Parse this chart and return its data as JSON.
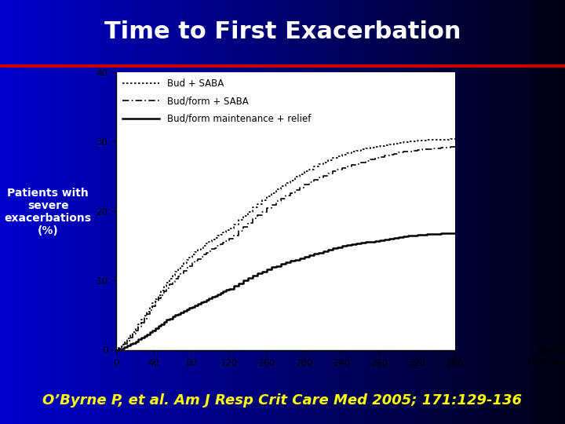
{
  "title": "Time to First Exacerbation",
  "title_color": "white",
  "title_fontsize": 22,
  "bg_color_left": "#0000cc",
  "bg_color_right": "#000020",
  "plot_bg_color": "white",
  "ylabel": "Patients with\nsevere\nexacerbations\n(%)",
  "ylabel_color": "white",
  "ylabel_fontsize": 10,
  "xlabel": "Days since\nrandomization",
  "xlabel_color": "black",
  "xlabel_fontsize": 9,
  "citation": "O’Byrne P, et al. Am J Resp Crit Care Med 2005; 171:129-136",
  "citation_color": "#ffff00",
  "citation_fontsize": 13,
  "red_line_color": "#cc0000",
  "xlim": [
    0,
    360
  ],
  "ylim": [
    0,
    40
  ],
  "xticks": [
    0,
    40,
    80,
    120,
    160,
    200,
    240,
    280,
    320,
    360
  ],
  "yticks": [
    0,
    10,
    20,
    30,
    40
  ],
  "legend_labels": [
    "Bud + SABA",
    "Bud/form + SABA",
    "Bud/form maintenance + relief"
  ],
  "line_color": "black",
  "curve1_x": [
    0,
    3,
    6,
    9,
    12,
    15,
    18,
    21,
    24,
    27,
    30,
    33,
    36,
    39,
    42,
    45,
    48,
    51,
    54,
    57,
    60,
    63,
    66,
    69,
    72,
    75,
    78,
    81,
    84,
    87,
    90,
    93,
    96,
    99,
    102,
    105,
    108,
    111,
    114,
    117,
    120,
    125,
    130,
    135,
    140,
    145,
    150,
    155,
    160,
    165,
    170,
    175,
    180,
    185,
    190,
    195,
    200,
    205,
    210,
    215,
    220,
    225,
    230,
    235,
    240,
    245,
    250,
    255,
    260,
    265,
    270,
    275,
    280,
    285,
    290,
    295,
    300,
    305,
    310,
    315,
    320,
    325,
    330,
    335,
    340,
    345,
    350,
    355,
    360
  ],
  "curve1_y": [
    0,
    0.3,
    0.7,
    1.1,
    1.6,
    2.1,
    2.6,
    3.1,
    3.7,
    4.3,
    4.9,
    5.5,
    6.1,
    6.7,
    7.3,
    7.9,
    8.5,
    9.1,
    9.7,
    10.2,
    10.7,
    11.2,
    11.7,
    12.1,
    12.5,
    12.9,
    13.3,
    13.7,
    14.1,
    14.4,
    14.7,
    15.0,
    15.3,
    15.6,
    15.9,
    16.1,
    16.4,
    16.6,
    16.9,
    17.2,
    17.5,
    18.0,
    18.7,
    19.3,
    19.9,
    20.5,
    21.0,
    21.6,
    22.1,
    22.6,
    23.1,
    23.6,
    24.0,
    24.4,
    24.9,
    25.3,
    25.7,
    26.0,
    26.4,
    26.7,
    27.0,
    27.3,
    27.6,
    27.9,
    28.1,
    28.3,
    28.5,
    28.7,
    28.9,
    29.0,
    29.1,
    29.2,
    29.4,
    29.5,
    29.6,
    29.7,
    29.8,
    29.9,
    30.0,
    30.0,
    30.1,
    30.1,
    30.2,
    30.2,
    30.2,
    30.3,
    30.3,
    30.4,
    30.4
  ],
  "curve2_x": [
    0,
    3,
    6,
    9,
    12,
    15,
    18,
    21,
    24,
    27,
    30,
    33,
    36,
    39,
    42,
    45,
    48,
    51,
    54,
    57,
    60,
    63,
    66,
    69,
    72,
    75,
    78,
    81,
    84,
    87,
    90,
    93,
    96,
    99,
    102,
    105,
    108,
    111,
    114,
    117,
    120,
    125,
    130,
    135,
    140,
    145,
    150,
    155,
    160,
    165,
    170,
    175,
    180,
    185,
    190,
    195,
    200,
    205,
    210,
    215,
    220,
    225,
    230,
    235,
    240,
    245,
    250,
    255,
    260,
    265,
    270,
    275,
    280,
    285,
    290,
    295,
    300,
    305,
    310,
    315,
    320,
    325,
    330,
    335,
    340,
    345,
    350,
    355,
    360
  ],
  "curve2_y": [
    0,
    0.2,
    0.5,
    0.9,
    1.3,
    1.8,
    2.3,
    2.8,
    3.3,
    3.9,
    4.5,
    5.1,
    5.7,
    6.3,
    6.9,
    7.4,
    7.9,
    8.4,
    8.9,
    9.4,
    9.8,
    10.2,
    10.6,
    11.0,
    11.4,
    11.8,
    12.1,
    12.5,
    12.8,
    13.1,
    13.4,
    13.7,
    14.0,
    14.2,
    14.5,
    14.7,
    15.0,
    15.2,
    15.4,
    15.7,
    16.0,
    16.5,
    17.1,
    17.7,
    18.3,
    18.9,
    19.4,
    19.9,
    20.4,
    20.9,
    21.4,
    21.8,
    22.2,
    22.6,
    23.0,
    23.4,
    23.8,
    24.1,
    24.5,
    24.8,
    25.1,
    25.4,
    25.7,
    26.0,
    26.2,
    26.4,
    26.6,
    26.8,
    27.0,
    27.2,
    27.4,
    27.6,
    27.8,
    28.0,
    28.1,
    28.2,
    28.4,
    28.5,
    28.6,
    28.7,
    28.8,
    28.9,
    28.9,
    29.0,
    29.0,
    29.1,
    29.1,
    29.2,
    29.2
  ],
  "curve3_x": [
    0,
    3,
    6,
    9,
    12,
    15,
    18,
    21,
    24,
    27,
    30,
    33,
    36,
    39,
    42,
    45,
    48,
    51,
    54,
    57,
    60,
    63,
    66,
    69,
    72,
    75,
    78,
    81,
    84,
    87,
    90,
    93,
    96,
    99,
    102,
    105,
    108,
    111,
    114,
    117,
    120,
    125,
    130,
    135,
    140,
    145,
    150,
    155,
    160,
    165,
    170,
    175,
    180,
    185,
    190,
    195,
    200,
    205,
    210,
    215,
    220,
    225,
    230,
    235,
    240,
    245,
    250,
    255,
    260,
    265,
    270,
    275,
    280,
    285,
    290,
    295,
    300,
    305,
    310,
    315,
    320,
    325,
    330,
    335,
    340,
    345,
    350,
    355,
    360
  ],
  "curve3_y": [
    0,
    0.1,
    0.2,
    0.4,
    0.6,
    0.8,
    1.0,
    1.2,
    1.5,
    1.7,
    2.0,
    2.2,
    2.5,
    2.8,
    3.1,
    3.4,
    3.7,
    4.0,
    4.3,
    4.5,
    4.8,
    5.0,
    5.2,
    5.4,
    5.6,
    5.8,
    6.0,
    6.2,
    6.4,
    6.6,
    6.8,
    7.0,
    7.2,
    7.4,
    7.6,
    7.8,
    8.0,
    8.2,
    8.4,
    8.6,
    8.8,
    9.2,
    9.6,
    10.0,
    10.4,
    10.7,
    11.0,
    11.3,
    11.6,
    11.9,
    12.1,
    12.4,
    12.6,
    12.8,
    13.0,
    13.2,
    13.4,
    13.6,
    13.8,
    14.0,
    14.2,
    14.4,
    14.6,
    14.8,
    15.0,
    15.1,
    15.2,
    15.3,
    15.4,
    15.5,
    15.6,
    15.7,
    15.8,
    15.9,
    16.0,
    16.1,
    16.2,
    16.3,
    16.4,
    16.5,
    16.6,
    16.6,
    16.7,
    16.7,
    16.7,
    16.8,
    16.8,
    16.8,
    16.8
  ]
}
